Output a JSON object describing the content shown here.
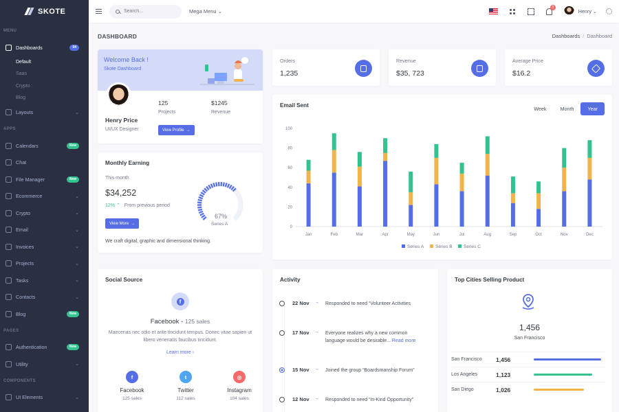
{
  "brand": "SKOTE",
  "sidebar": {
    "sections": [
      {
        "title": "MENU"
      },
      {
        "title": "APPS"
      },
      {
        "title": "PAGES"
      },
      {
        "title": "COMPONENTS"
      }
    ],
    "dashboards": {
      "label": "Dashboards",
      "badge": "04"
    },
    "dashboard_sub": [
      "Default",
      "Saas",
      "Crypto",
      "Blog"
    ],
    "layouts": "Layouts",
    "apps": [
      {
        "label": "Calendars",
        "badge": "New"
      },
      {
        "label": "Chat"
      },
      {
        "label": "File Manager",
        "badge": "New"
      },
      {
        "label": "Ecommerce",
        "chevron": true
      },
      {
        "label": "Crypto",
        "chevron": true
      },
      {
        "label": "Email",
        "chevron": true
      },
      {
        "label": "Invoices",
        "chevron": true
      },
      {
        "label": "Projects",
        "chevron": true
      },
      {
        "label": "Tasks",
        "chevron": true
      },
      {
        "label": "Contacts",
        "chevron": true
      },
      {
        "label": "Blog",
        "badge": "New"
      }
    ],
    "pages": [
      {
        "label": "Authentication",
        "badge": "New"
      },
      {
        "label": "Utility",
        "chevron": true
      }
    ],
    "components": [
      {
        "label": "UI Elements",
        "chevron": true
      }
    ]
  },
  "header": {
    "search_placeholder": "Search...",
    "mega_menu": "Mega Menu",
    "notifications": "3",
    "user": "Henry"
  },
  "page": {
    "title": "DASHBOARD",
    "breadcrumb": [
      "Dashboards",
      "Dashboard"
    ]
  },
  "welcome": {
    "title": "Welcome Back !",
    "subtitle": "Skote Dashboard",
    "name": "Henry Price",
    "role": "UI/UX Designer",
    "projects_value": "125",
    "projects_label": "Projects",
    "revenue_value": "$1245",
    "revenue_label": "Revenue",
    "button": "View Profile"
  },
  "stats": [
    {
      "label": "Orders",
      "value": "1,235"
    },
    {
      "label": "Revenue",
      "value": "$35, 723"
    },
    {
      "label": "Average Price",
      "value": "$16.2"
    }
  ],
  "earning": {
    "title": "Monthly Earning",
    "period": "This month",
    "amount": "$34,252",
    "change": "12%",
    "change_text": "From previous period",
    "button": "View More",
    "footer": "We craft digital, graphic and dimensional thinking.",
    "gauge_value": "67%",
    "gauge_label": "Series A",
    "gauge_fraction": 0.67
  },
  "email_chart": {
    "title": "Email Sent",
    "tabs": [
      "Week",
      "Month",
      "Year"
    ],
    "active_tab": "Year"
  },
  "chart_data": {
    "type": "bar",
    "stacked": true,
    "categories": [
      "Jan",
      "Feb",
      "Mar",
      "Apr",
      "May",
      "Jun",
      "Jul",
      "Aug",
      "Sep",
      "Oct",
      "Nov",
      "Dec"
    ],
    "series": [
      {
        "name": "Series A",
        "color": "#556ee6",
        "values": [
          44,
          55,
          41,
          67,
          22,
          43,
          36,
          52,
          24,
          18,
          36,
          48
        ]
      },
      {
        "name": "Series B",
        "color": "#f1b44c",
        "values": [
          13,
          23,
          20,
          8,
          13,
          27,
          18,
          22,
          10,
          16,
          24,
          22
        ]
      },
      {
        "name": "Series C",
        "color": "#34c38f",
        "values": [
          11,
          17,
          15,
          15,
          21,
          14,
          11,
          18,
          17,
          12,
          20,
          18
        ]
      }
    ],
    "yticks": [
      "0",
      "20",
      "40",
      "60",
      "80",
      "100"
    ],
    "ylim": [
      0,
      100
    ],
    "legend": "bottom"
  },
  "social": {
    "title": "Social Source",
    "headline_name": "Facebook",
    "headline_sales": "125 sales",
    "description": "Maecenas nec odio et ante tincidunt tempus. Donec vitae sapien ut libero venenatis faucibus tincidunt.",
    "link": "Learn more",
    "items": [
      {
        "name": "Facebook",
        "sales": "125 sales",
        "color": "#556ee6"
      },
      {
        "name": "Twitter",
        "sales": "112 sales",
        "color": "#50a5f1"
      },
      {
        "name": "Instagram",
        "sales": "104 sales",
        "color": "#f46a6a"
      }
    ]
  },
  "activity": {
    "title": "Activity",
    "items": [
      {
        "date": "22 Nov",
        "text": "Responded to need “Volunteer Activities"
      },
      {
        "date": "17 Nov",
        "text": "Everyone realizes why a new common language would be desirable...",
        "link": "Read more"
      },
      {
        "date": "15 Nov",
        "text": "Joined the group “Boardsmanship Forum”"
      },
      {
        "date": "12 Nov",
        "text": "Responded to need “In-Kind Opportunity”"
      }
    ]
  },
  "cities": {
    "title": "Top Cities Selling Product",
    "top_value": "1,456",
    "top_city": "San Francisco",
    "rows": [
      {
        "city": "San Francisco",
        "value": "1,456",
        "color": "#556ee6",
        "fraction": 0.94
      },
      {
        "city": "Los Angeles",
        "value": "1,123",
        "color": "#34c38f",
        "fraction": 0.82
      },
      {
        "city": "San Diego",
        "value": "1,026",
        "color": "#f1b44c",
        "fraction": 0.7
      }
    ]
  }
}
